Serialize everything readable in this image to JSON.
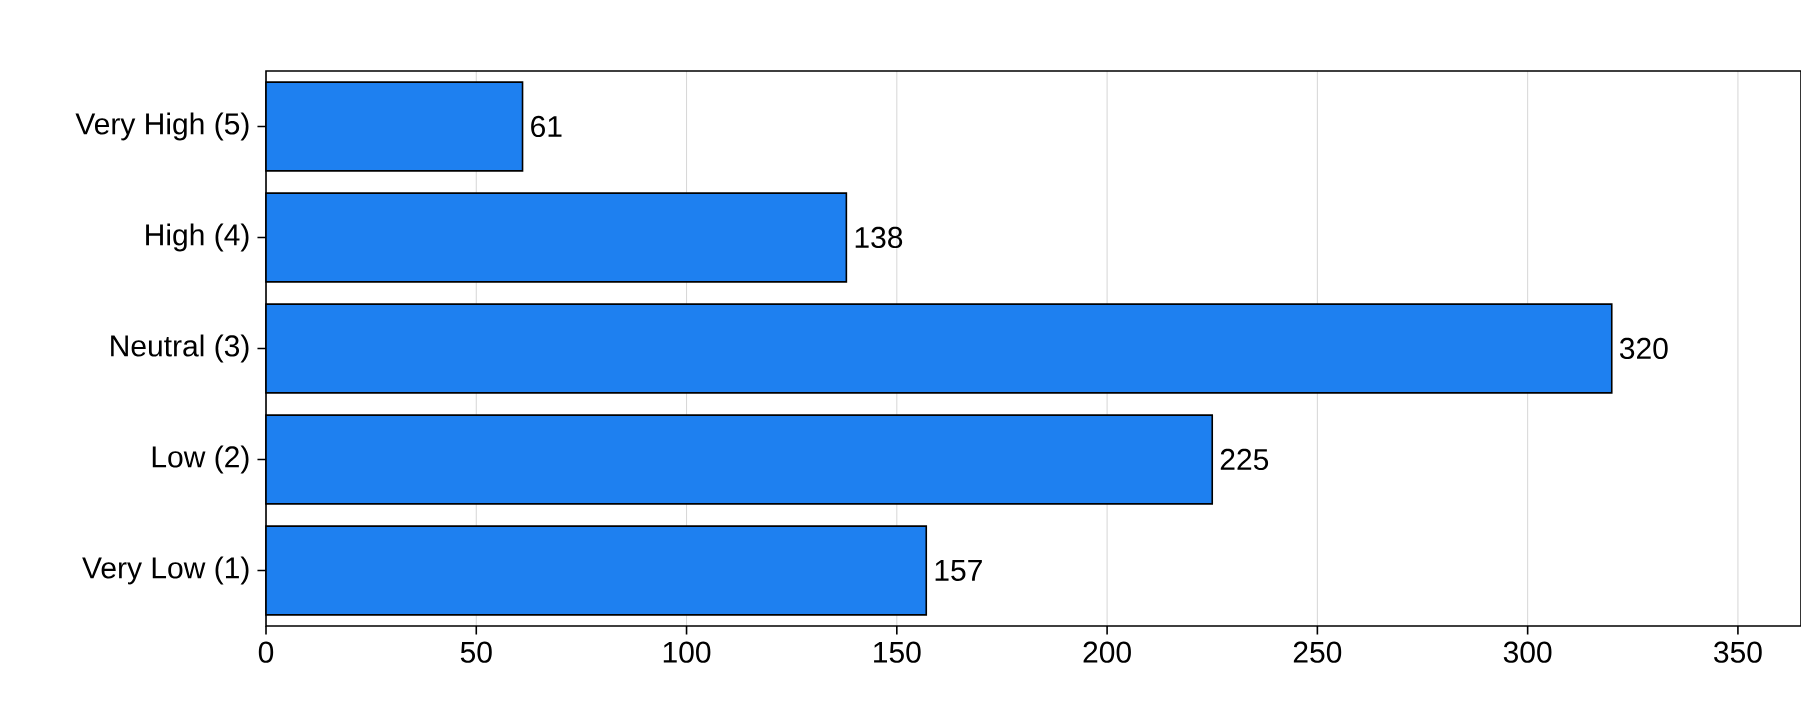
{
  "chart_data": {
    "type": "bar",
    "orientation": "horizontal",
    "categories": [
      "Very High (5)",
      "High (4)",
      "Neutral (3)",
      "Low (2)",
      "Very Low (1)"
    ],
    "values": [
      61,
      138,
      320,
      225,
      157
    ],
    "color": "#1e80f0",
    "xlim": [
      0,
      365
    ],
    "xticks": [
      0,
      50,
      100,
      150,
      200,
      250,
      300,
      350
    ],
    "grid": "x",
    "data_labels": true
  }
}
